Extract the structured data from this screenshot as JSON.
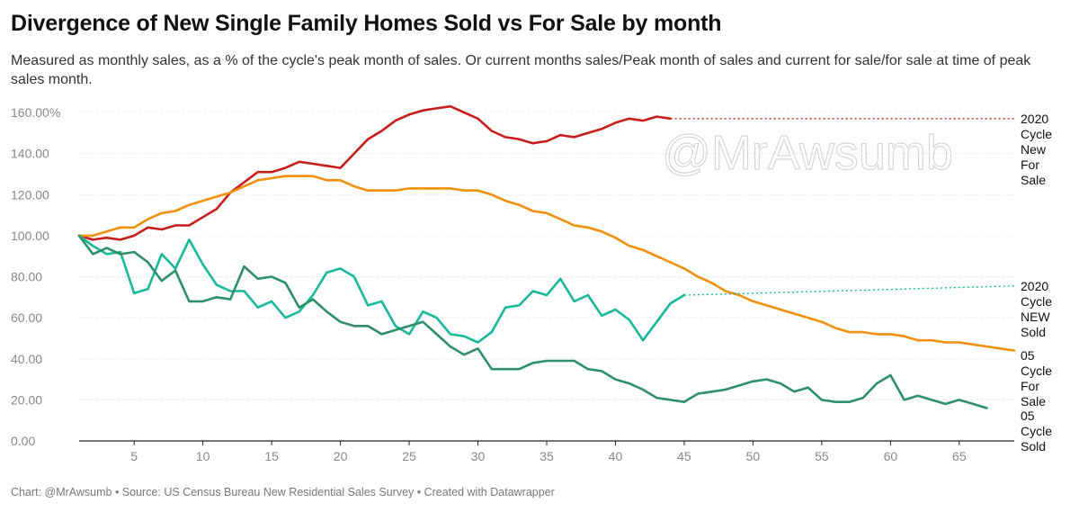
{
  "title": "Divergence of New Single Family Homes Sold vs For Sale by month",
  "subtitle": "Measured as monthly sales, as a % of the cycle's peak month of sales. Or current months sales/Peak month of sales and current for sale/for sale at time of peak sales month.",
  "footer": "Chart: @MrAwsumb • Source: US Census Bureau New Residential Sales Survey • Created with Datawrapper",
  "watermark": "@MrAwsumb",
  "colors": {
    "red": "#c71e1d",
    "orange": "#f0900c",
    "teal": "#18b89a",
    "green": "#2e8f68",
    "grid": "#dcdcdc",
    "axis": "#222222"
  },
  "chart_data": {
    "type": "line",
    "title": "Divergence of New Single Family Homes Sold vs For Sale by month",
    "xlim": [
      0,
      69
    ],
    "ylim": [
      0,
      160
    ],
    "x_ticks": [
      5,
      10,
      15,
      20,
      25,
      30,
      35,
      40,
      45,
      50,
      55,
      60,
      65
    ],
    "y_ticks": [
      0,
      20,
      40,
      60,
      80,
      100,
      120,
      140,
      160
    ],
    "y_tick_labels": [
      "0.00",
      "20.00",
      "40.00",
      "60.00",
      "80.00",
      "100.00",
      "120.00",
      "140.00",
      "160.00%"
    ],
    "grid": true,
    "series": [
      {
        "name": "2020 Cycle New For Sale",
        "label_lines": [
          "2020",
          "Cycle",
          "New",
          "For",
          "Sale"
        ],
        "color_key": "red",
        "values": [
          100,
          98,
          99,
          98,
          100,
          104,
          103,
          105,
          105,
          109,
          113,
          121,
          126,
          131,
          131,
          133,
          136,
          135,
          134,
          133,
          140,
          147,
          151,
          156,
          159,
          161,
          162,
          163,
          160,
          157,
          151,
          148,
          147,
          145,
          146,
          149,
          148,
          150,
          152,
          155,
          157,
          156,
          158,
          157
        ],
        "projection_to": [
          69,
          157
        ]
      },
      {
        "name": "05 Cycle For Sale",
        "label_lines": [
          "05",
          "Cycle",
          "For",
          "Sale"
        ],
        "color_key": "orange",
        "values": [
          100,
          100,
          102,
          104,
          104,
          108,
          111,
          112,
          115,
          117,
          119,
          121,
          124,
          127,
          128,
          129,
          129,
          129,
          127,
          127,
          124,
          122,
          122,
          122,
          123,
          123,
          123,
          123,
          122,
          122,
          120,
          117,
          115,
          112,
          111,
          108,
          105,
          104,
          102,
          99,
          95,
          93,
          90,
          87,
          84,
          80,
          77,
          73,
          71,
          68,
          66,
          64,
          62,
          60,
          58,
          55,
          53,
          53,
          52,
          52,
          51,
          49,
          49,
          48,
          48,
          47,
          46,
          45,
          44
        ]
      },
      {
        "name": "2020 Cycle NEW Sold",
        "label_lines": [
          "2020",
          "Cycle",
          "NEW",
          "Sold"
        ],
        "color_key": "teal",
        "values": [
          100,
          95,
          91,
          92,
          72,
          74,
          91,
          84,
          98,
          86,
          76,
          73,
          73,
          65,
          68,
          60,
          63,
          71,
          82,
          84,
          80,
          66,
          68,
          56,
          52,
          63,
          60,
          52,
          51,
          48,
          53,
          65,
          66,
          73,
          71,
          79,
          68,
          71,
          61,
          64,
          59,
          49,
          58,
          67,
          71
        ],
        "projection_to": [
          69,
          75.5
        ]
      },
      {
        "name": "05 Cycle Sold",
        "label_lines": [
          "05",
          "Cycle",
          "Sold"
        ],
        "color_key": "green",
        "values": [
          100,
          91,
          94,
          91,
          92,
          87,
          78,
          83,
          68,
          68,
          70,
          69,
          85,
          79,
          80,
          77,
          65,
          69,
          63,
          58,
          56,
          56,
          52,
          54,
          56,
          58,
          52,
          46,
          42,
          45,
          35,
          35,
          35,
          38,
          39,
          39,
          39,
          35,
          34,
          30,
          28,
          25,
          21,
          20,
          19,
          23,
          24,
          25,
          27,
          29,
          30,
          28,
          24,
          26,
          20,
          19,
          19,
          21,
          28,
          32,
          20,
          22,
          20,
          18,
          20,
          18,
          16
        ]
      }
    ]
  }
}
